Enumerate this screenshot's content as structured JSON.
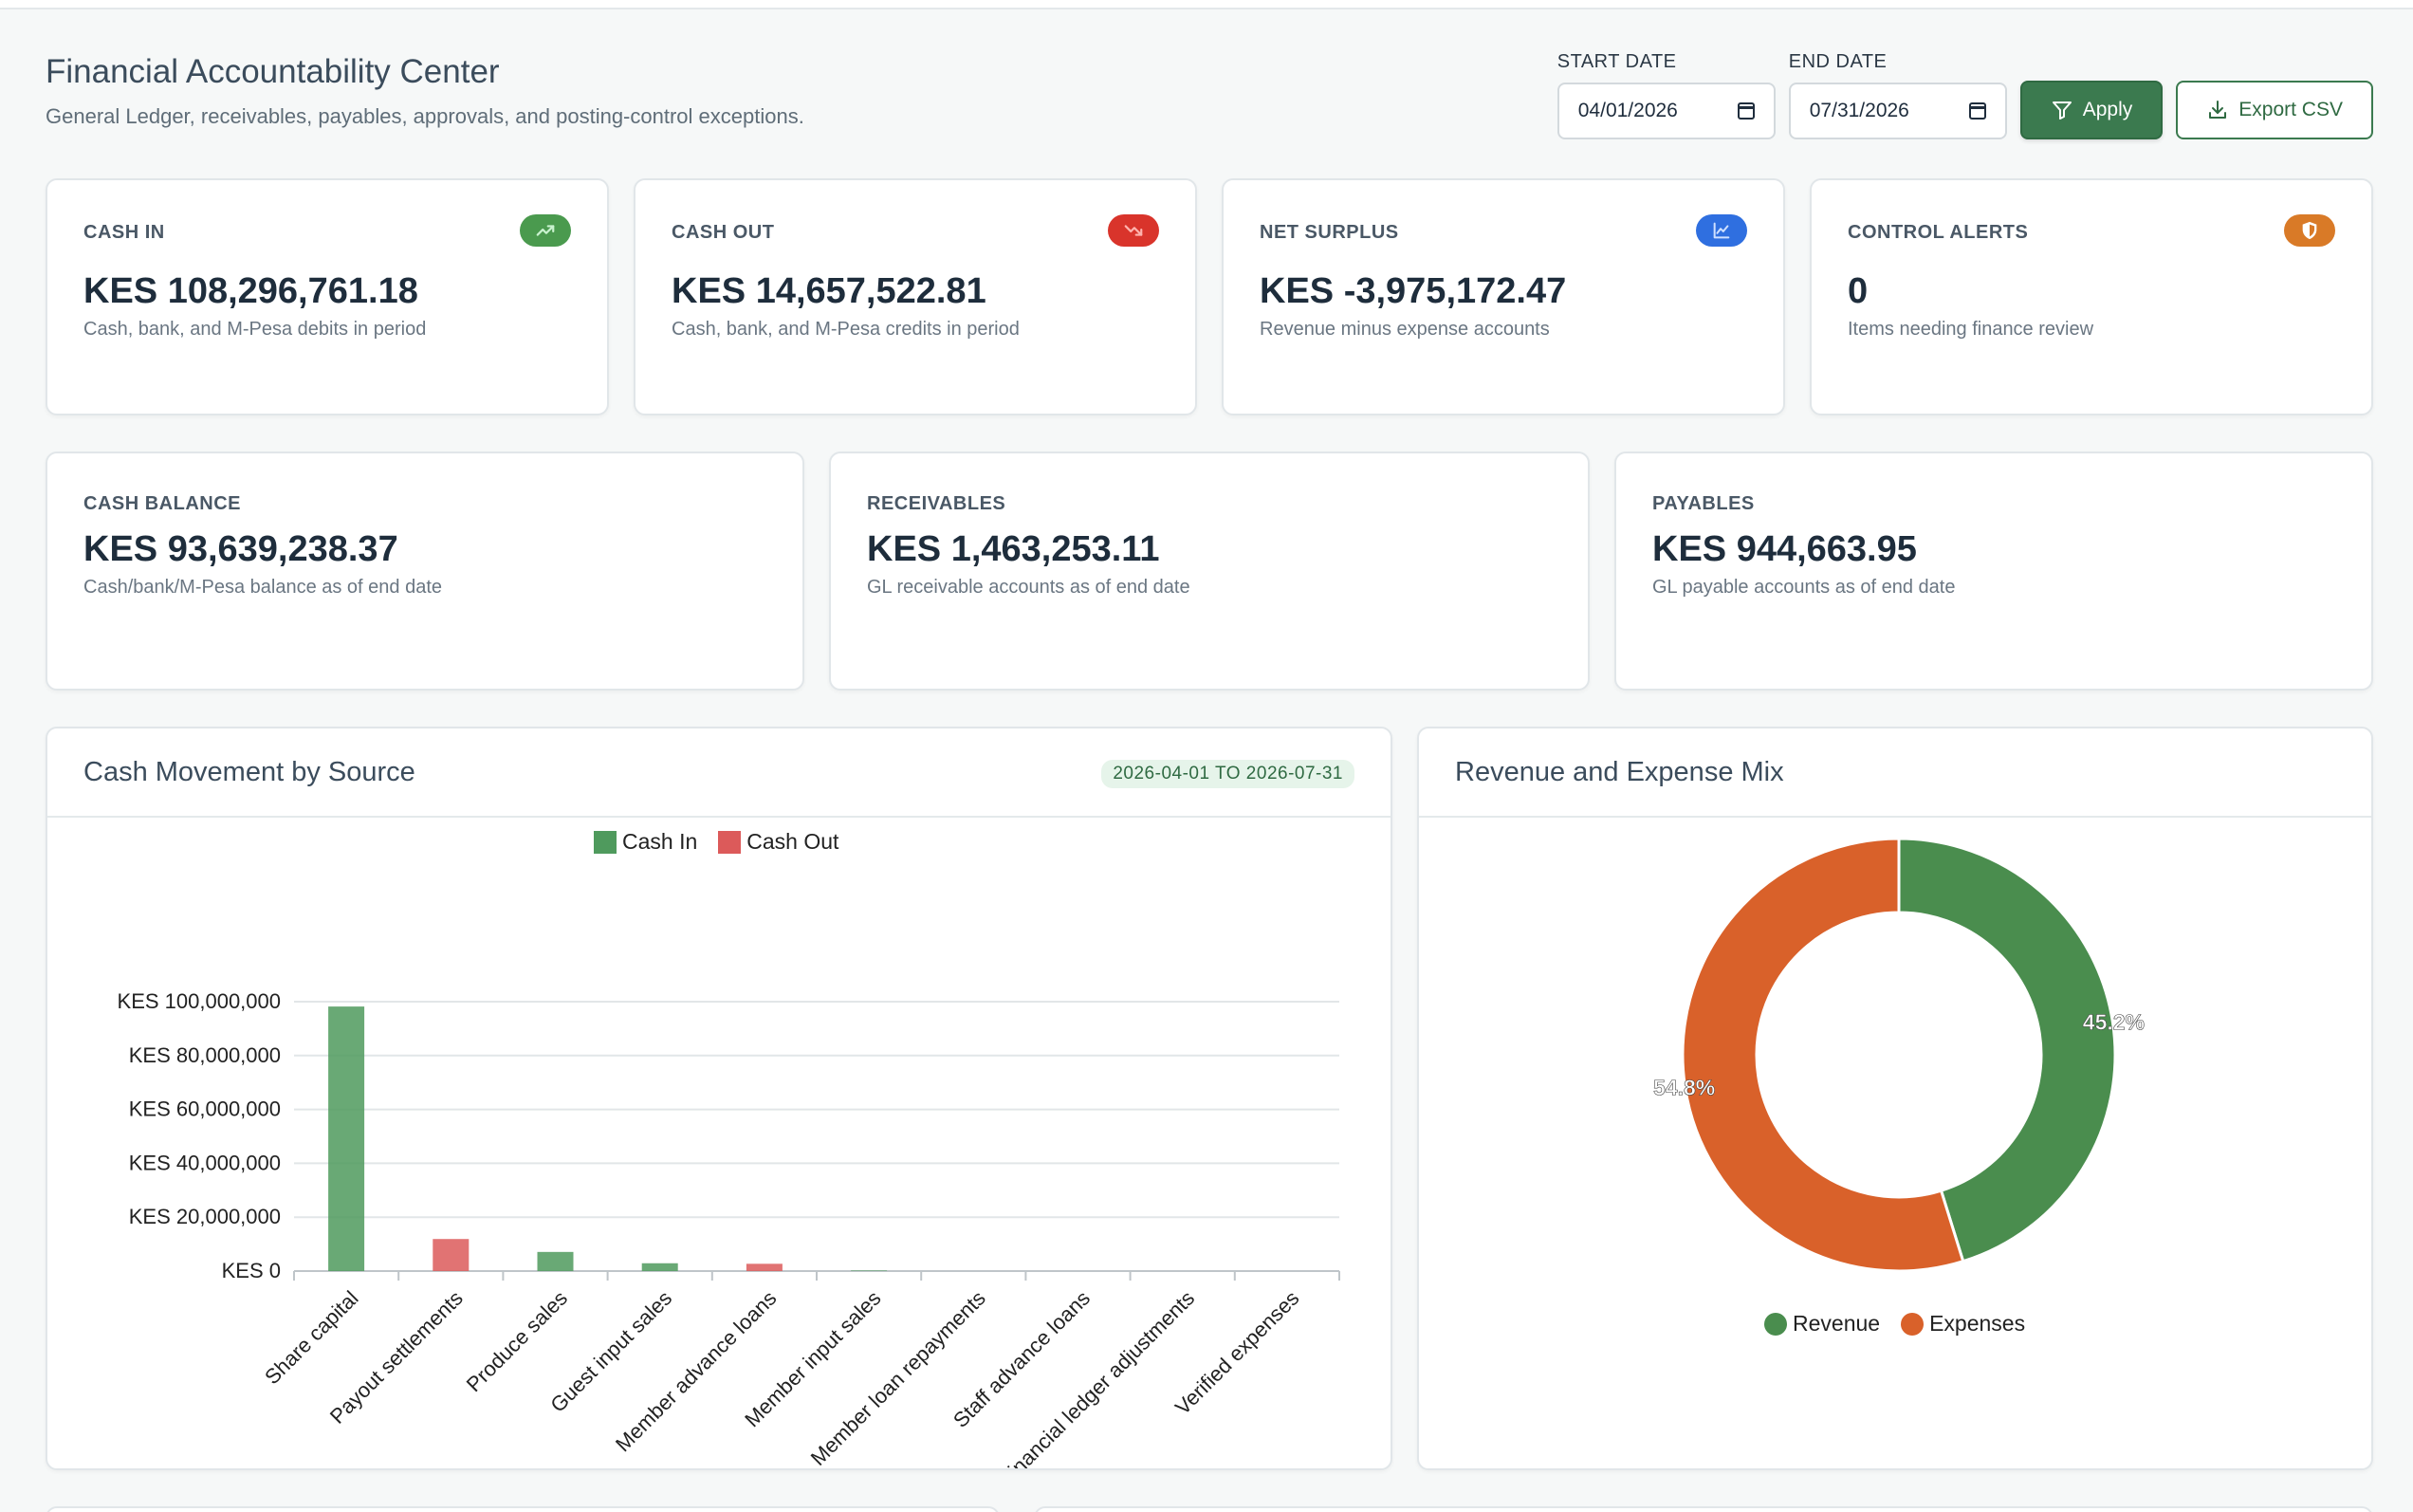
{
  "header": {
    "title": "Financial Accountability Center",
    "subtitle": "General Ledger, receivables, payables, approvals, and posting-control exceptions."
  },
  "filters": {
    "start_label": "START DATE",
    "start_value": "04/01/2026",
    "end_label": "END DATE",
    "end_value": "07/31/2026",
    "apply_label": "Apply",
    "export_label": "Export CSV"
  },
  "kpis": [
    {
      "label": "CASH IN",
      "value": "KES 108,296,761.18",
      "note": "Cash, bank, and M-Pesa debits in period",
      "icon": "trend-up-icon",
      "color": "#4a9a4e"
    },
    {
      "label": "CASH OUT",
      "value": "KES 14,657,522.81",
      "note": "Cash, bank, and M-Pesa credits in period",
      "icon": "trend-down-icon",
      "color": "#d9342b"
    },
    {
      "label": "NET SURPLUS",
      "value": "KES -3,975,172.47",
      "note": "Revenue minus expense accounts",
      "icon": "line-chart-icon",
      "color": "#2f6fe0"
    },
    {
      "label": "CONTROL ALERTS",
      "value": "0",
      "note": "Items needing finance review",
      "icon": "shield-icon",
      "color": "#d97a27"
    }
  ],
  "balances": [
    {
      "label": "CASH BALANCE",
      "value": "KES 93,639,238.37",
      "note": "Cash/bank/M-Pesa balance as of end date"
    },
    {
      "label": "RECEIVABLES",
      "value": "KES 1,463,253.11",
      "note": "GL receivable accounts as of end date"
    },
    {
      "label": "PAYABLES",
      "value": "KES 944,663.95",
      "note": "GL payable accounts as of end date"
    }
  ],
  "cash_panel": {
    "title": "Cash Movement by Source",
    "range": "2026-04-01 TO 2026-07-31"
  },
  "mix_panel": {
    "title": "Revenue and Expense Mix"
  },
  "chart_data": [
    {
      "type": "bar",
      "categories": [
        "Share capital",
        "Payout settlements",
        "Produce sales",
        "Guest input sales",
        "Member advance loans",
        "Member input sales",
        "Member loan repayments",
        "Staff advance loans",
        "Financial ledger adjustments",
        "Verified expenses"
      ],
      "series": [
        {
          "name": "Cash In",
          "color": "#4f9a5d",
          "values": [
            98200000,
            0,
            7100000,
            2900000,
            0,
            200000,
            0,
            0,
            0,
            0
          ]
        },
        {
          "name": "Cash Out",
          "color": "#dc5a5a",
          "values": [
            0,
            11900000,
            0,
            0,
            2700000,
            0,
            0,
            0,
            0,
            0
          ]
        }
      ],
      "ylim": [
        0,
        100000000
      ],
      "yticks": [
        "KES 0",
        "KES 20,000,000",
        "KES 40,000,000",
        "KES 60,000,000",
        "KES 80,000,000",
        "KES 100,000,000"
      ],
      "legend": "top",
      "grid": true
    },
    {
      "type": "pie",
      "donut": true,
      "labels": [
        "Revenue",
        "Expenses"
      ],
      "values": [
        45.2,
        54.8
      ],
      "display": [
        "45.2%",
        "54.8%"
      ],
      "colors": [
        "#4a8d4e",
        "#d9612a"
      ],
      "legend": "bottom"
    }
  ]
}
